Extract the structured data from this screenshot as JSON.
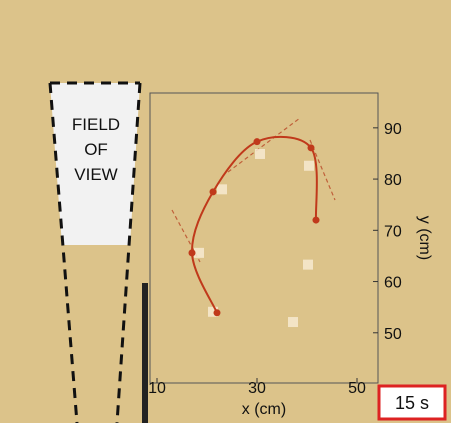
{
  "chart_data": {
    "type": "line",
    "x_label": "x (cm)",
    "y_label": "y (cm)",
    "annotations": [
      "FIELD",
      "OF",
      "VIEW"
    ],
    "time_label": "15 s",
    "xlim": [
      8.6,
      54.2
    ],
    "xticks": [
      10,
      30,
      50
    ],
    "ylim": [
      40.2,
      96.8
    ],
    "yticks": [
      50,
      60,
      70,
      80,
      90
    ],
    "series": [
      {
        "color": "#f7ead0",
        "marker": "square",
        "line": false,
        "x": [
          30.6,
          23,
          18.4,
          40.2,
          37.2,
          21.2,
          40.4
        ],
        "y": [
          84.9,
          78,
          65.6,
          63.3,
          52.1,
          54.1,
          82.6
        ]
      },
      {
        "color": "#c0391b",
        "marker": "circle",
        "line": true,
        "x": [
          22,
          17,
          21.2,
          30,
          40.8,
          41.8
        ],
        "y": [
          53.9,
          65.6,
          77.5,
          87.3,
          86.1,
          72
        ]
      }
    ]
  }
}
